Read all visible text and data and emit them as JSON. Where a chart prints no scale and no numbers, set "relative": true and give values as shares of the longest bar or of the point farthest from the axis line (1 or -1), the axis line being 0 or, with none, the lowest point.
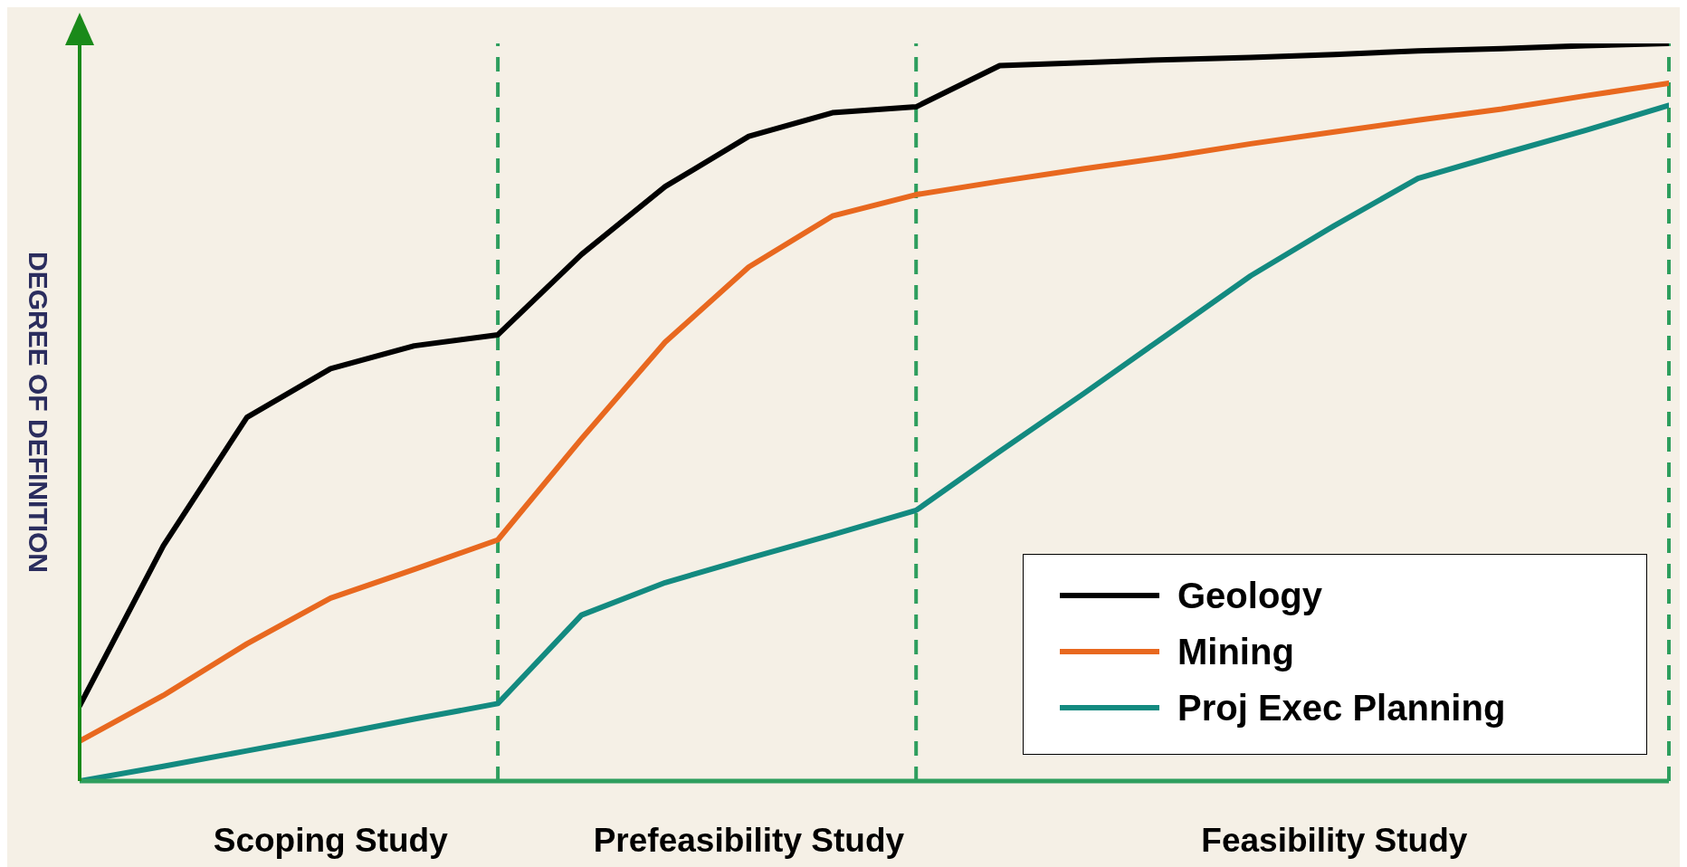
{
  "chart_data": {
    "type": "line",
    "relative": true,
    "ylabel": "DEGREE OF DEFINITION",
    "categories": [
      null,
      null,
      null,
      "Scoping Study",
      null,
      null,
      null,
      null,
      "Prefeasibility Study",
      null,
      null,
      null,
      null,
      null,
      null,
      "Feasibility Study",
      null,
      null,
      null,
      null
    ],
    "series": [
      {
        "name": "Geology",
        "color": "#000000",
        "values": [
          0.102,
          0.319,
          0.493,
          0.559,
          0.59,
          0.605,
          0.714,
          0.806,
          0.874,
          0.906,
          0.914,
          0.97,
          0.974,
          0.978,
          0.981,
          0.985,
          0.99,
          0.993,
          0.997,
          1.0
        ]
      },
      {
        "name": "Mining",
        "color": "#e8681f",
        "values": [
          0.054,
          0.116,
          0.186,
          0.248,
          0.287,
          0.327,
          0.464,
          0.595,
          0.697,
          0.766,
          0.795,
          0.813,
          0.83,
          0.846,
          0.864,
          0.88,
          0.896,
          0.911,
          0.929,
          0.946
        ]
      },
      {
        "name": "Proj Exec Planning",
        "color": "#138a80",
        "values": [
          0,
          0.02,
          0.041,
          0.062,
          0.084,
          0.105,
          0.225,
          0.269,
          0.302,
          0.334,
          0.367,
          0.447,
          0.525,
          0.605,
          0.685,
          0.753,
          0.817,
          0.85,
          0.882,
          0.916
        ]
      }
    ],
    "legend": "bottom right",
    "marker": "none",
    "line_style": "solid"
  }
}
